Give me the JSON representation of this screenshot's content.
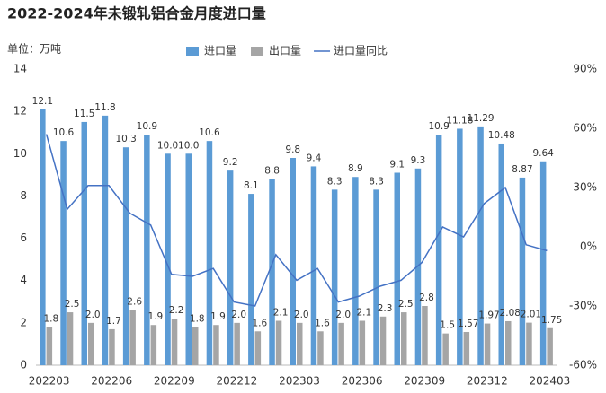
{
  "chart_data": {
    "type": "bar",
    "title": "2022-2024年未锻轧铝合金月度进口量",
    "y_label": "单位：万吨",
    "categories": [
      "202203",
      null,
      null,
      "202206",
      null,
      null,
      "202209",
      null,
      null,
      "202212",
      null,
      null,
      "202303",
      null,
      null,
      "202306",
      null,
      null,
      "202309",
      null,
      null,
      "202312",
      null,
      null,
      "202403"
    ],
    "series": [
      {
        "name": "进口量",
        "color": "#5b9bd5",
        "type": "bar",
        "values": [
          12.1,
          10.6,
          11.5,
          11.8,
          10.3,
          10.9,
          10.0,
          10.0,
          10.6,
          9.2,
          8.1,
          8.8,
          9.8,
          9.4,
          8.3,
          8.9,
          8.3,
          9.1,
          9.3,
          10.9,
          11.18,
          11.29,
          10.48,
          8.87,
          9.64
        ],
        "value_labels": [
          "12.1",
          "10.6",
          "11.5",
          "11.8",
          "10.3",
          "10.9",
          "10.0",
          "10.0",
          "10.6",
          "9.2",
          "8.1",
          "8.8",
          "9.8",
          "9.4",
          "8.3",
          "8.9",
          "8.3",
          "9.1",
          "9.3",
          "10.9",
          "11.18",
          "11.29",
          "10.48",
          "8.87",
          "9.64"
        ]
      },
      {
        "name": "出口量",
        "color": "#a5a5a5",
        "type": "bar",
        "values": [
          1.8,
          2.5,
          2.0,
          1.7,
          2.6,
          1.9,
          2.2,
          1.8,
          1.9,
          2.0,
          1.6,
          2.1,
          2.0,
          1.6,
          2.0,
          2.1,
          2.3,
          2.5,
          2.8,
          1.5,
          1.57,
          1.97,
          2.08,
          2.01,
          1.75
        ],
        "value_labels": [
          "1.8",
          "2.5",
          "2.0",
          "1.7",
          "2.6",
          "1.9",
          "2.2",
          "1.8",
          "1.9",
          "2.0",
          "1.6",
          "2.1",
          "2.0",
          "1.6",
          "2.0",
          "2.1",
          "2.3",
          "2.5",
          "2.8",
          "1.5",
          "1.57",
          "1.97",
          "2.08",
          "2.01",
          "1.75"
        ]
      },
      {
        "name": "进口量同比",
        "color": "#4472c4",
        "type": "line",
        "axis": "y2",
        "values": [
          57,
          19,
          31,
          31,
          17,
          11,
          -14,
          -15,
          -11,
          -28,
          -30,
          -4,
          -17,
          -11,
          -28,
          -25,
          -20,
          -17,
          -8,
          10,
          5,
          22,
          30,
          1,
          -2
        ]
      }
    ],
    "ylim": [
      0,
      14
    ],
    "yticks": [
      0,
      2,
      4,
      6,
      8,
      10,
      12,
      14
    ],
    "y2lim": [
      -60,
      90
    ],
    "y2ticks": [
      {
        "value": -60,
        "label": "-60%"
      },
      {
        "value": -30,
        "label": "-30%"
      },
      {
        "value": 0,
        "label": "0%"
      },
      {
        "value": 30,
        "label": "30%"
      },
      {
        "value": 60,
        "label": "60%"
      },
      {
        "value": 90,
        "label": "90%"
      }
    ],
    "legend": "top"
  }
}
